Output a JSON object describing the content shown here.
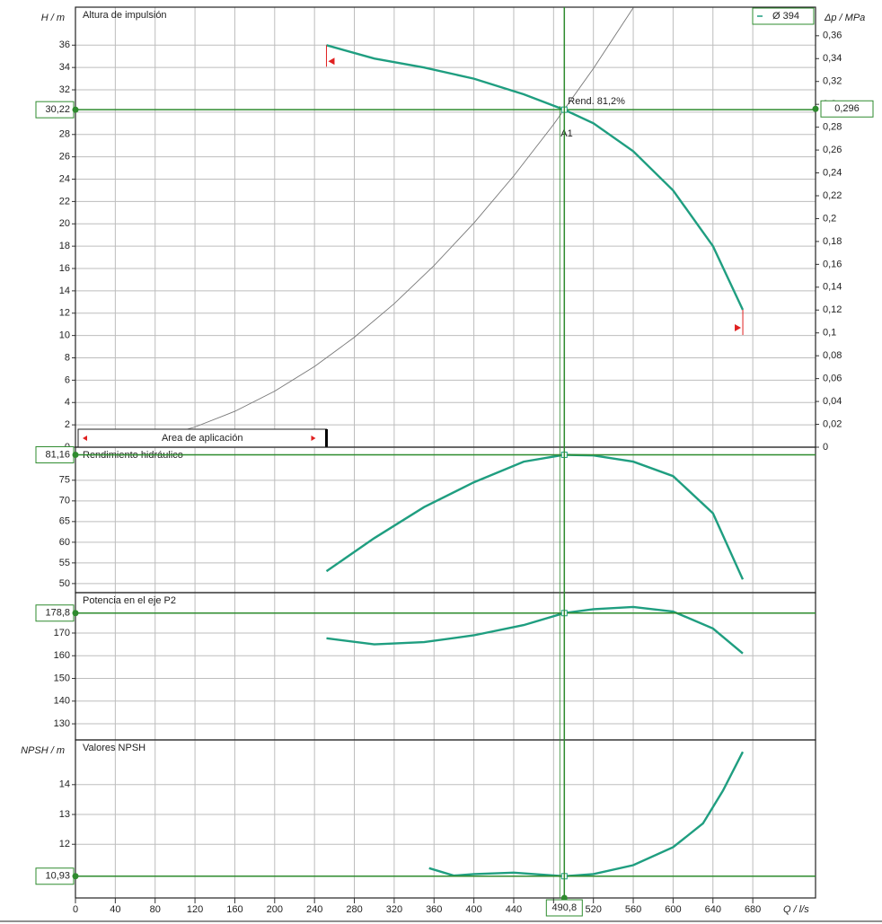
{
  "chart_data": [
    {
      "type": "line",
      "title": "Altura de impulsión",
      "ylabel": "H / m",
      "y2label": "Δp / MPa",
      "xlim": [
        0,
        743
      ],
      "ylim": [
        0,
        39.4
      ],
      "y2lim": [
        0,
        0.385
      ],
      "yticks": [
        0,
        2,
        4,
        6,
        8,
        10,
        12,
        14,
        16,
        18,
        20,
        22,
        24,
        26,
        28,
        30,
        32,
        34,
        36
      ],
      "y2ticks": [
        0,
        {
          "value": 0.02,
          "label": "0,02"
        },
        {
          "value": 0.04,
          "label": "0,04"
        },
        {
          "value": 0.06,
          "label": "0,06"
        },
        {
          "value": 0.08,
          "label": "0,08"
        },
        {
          "value": 0.1,
          "label": "0,1"
        },
        {
          "value": 0.12,
          "label": "0,12"
        },
        {
          "value": 0.14,
          "label": "0,14"
        },
        {
          "value": 0.16,
          "label": "0,16"
        },
        {
          "value": 0.18,
          "label": "0,18"
        },
        {
          "value": 0.2,
          "label": "0,2"
        },
        {
          "value": 0.22,
          "label": "0,22"
        },
        {
          "value": 0.24,
          "label": "0,24"
        },
        {
          "value": 0.26,
          "label": "0,26"
        },
        {
          "value": 0.28,
          "label": "0,28"
        },
        {
          "value": 0.3,
          "label": "0,3"
        },
        {
          "value": 0.32,
          "label": "0,32"
        },
        {
          "value": 0.34,
          "label": "0,34"
        },
        {
          "value": 0.36,
          "label": "0,36"
        }
      ],
      "series": [
        {
          "name": "Ø 394",
          "color": "#1f9e80",
          "x": [
            252,
            300,
            350,
            400,
            450,
            490.8,
            520,
            560,
            600,
            640,
            670
          ],
          "values": [
            36,
            34.8,
            34,
            33,
            31.6,
            30.22,
            29,
            26.5,
            23,
            18,
            12.3
          ]
        },
        {
          "color": "#777777",
          "x": [
            0,
            40,
            80,
            120,
            160,
            200,
            240,
            280,
            320,
            360,
            400,
            440,
            480,
            520,
            560
          ],
          "values": [
            0,
            0.2,
            0.8,
            1.81,
            3.21,
            5.02,
            7.23,
            9.84,
            12.85,
            16.26,
            20.07,
            24.29,
            28.9,
            33.92,
            39.34
          ]
        }
      ],
      "operating_point": {
        "y": {
          "value": 30.22,
          "label": "30,22"
        },
        "y2": {
          "value": 0.296,
          "label": "0,296"
        }
      },
      "annotations": [
        "Rend. 81,2%",
        "A1"
      ],
      "application_area": {
        "label": "Area de aplicación",
        "range": [
          252,
          670
        ]
      }
    },
    {
      "type": "line",
      "title": "Rendimiento hidráulico",
      "xlim": [
        0,
        743
      ],
      "ylim": [
        47.8,
        83
      ],
      "yticks": [
        50,
        55,
        60,
        65,
        70,
        75
      ],
      "series": [
        {
          "color": "#1f9e80",
          "x": [
            252,
            300,
            350,
            400,
            450,
            490.8,
            520,
            560,
            600,
            640,
            670
          ],
          "values": [
            53,
            61,
            68.5,
            74.5,
            79.5,
            81.16,
            81,
            79.5,
            76,
            67,
            51
          ]
        }
      ],
      "operating_point": {
        "y": {
          "value": 81.16,
          "label": "81,16"
        }
      }
    },
    {
      "type": "line",
      "title": "Potencia en el eje P2",
      "xlim": [
        0,
        743
      ],
      "ylim": [
        122.9,
        187.8
      ],
      "yticks": [
        130,
        140,
        150,
        160,
        170
      ],
      "series": [
        {
          "color": "#1f9e80",
          "x": [
            252,
            300,
            350,
            400,
            450,
            490.8,
            520,
            560,
            600,
            640,
            670
          ],
          "values": [
            167.7,
            165,
            166,
            169,
            173.5,
            178.8,
            180.5,
            181.5,
            179.5,
            172,
            161
          ]
        }
      ],
      "operating_point": {
        "y": {
          "value": 178.8,
          "label": "178,8"
        }
      }
    },
    {
      "type": "line",
      "title": "Valores NPSH",
      "ylabel": "NPSH / m",
      "xlabel": "Q / l/s",
      "xlim": [
        0,
        743
      ],
      "ylim": [
        10.2,
        15.5
      ],
      "yticks": [
        12,
        13,
        14
      ],
      "xticks": [
        0,
        40,
        80,
        120,
        160,
        200,
        240,
        280,
        320,
        360,
        400,
        440,
        480,
        520,
        560,
        600,
        640,
        680
      ],
      "series": [
        {
          "color": "#1f9e80",
          "x": [
            355,
            380,
            400,
            440,
            490.8,
            520,
            560,
            600,
            630,
            650,
            670
          ],
          "values": [
            11.2,
            10.95,
            11,
            11.05,
            10.93,
            11,
            11.3,
            11.9,
            12.7,
            13.8,
            15.1
          ]
        }
      ],
      "operating_point": {
        "x": {
          "value": 490.8,
          "label": "490,8"
        },
        "y": {
          "value": 10.93,
          "label": "10,93"
        }
      }
    }
  ]
}
